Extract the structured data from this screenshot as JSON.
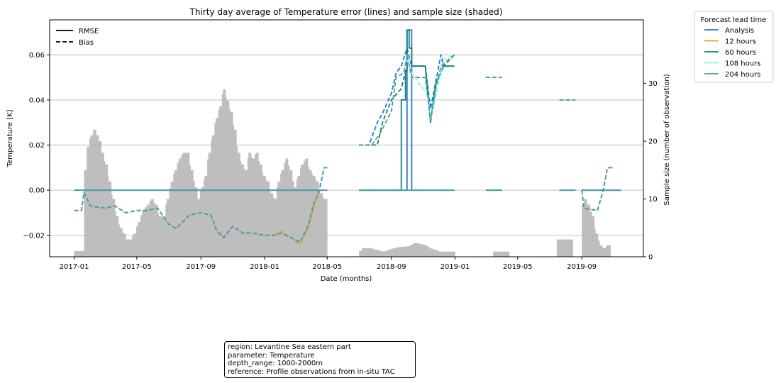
{
  "chart_data": {
    "type": "line",
    "title": "Thirty day average of Temperature error (lines) and sample size (shaded)",
    "xlabel": "Date (months)",
    "ylabel": "Temperature [K]",
    "y2label": "Sample size (number of observation)",
    "xlim": [
      "2016-11-15",
      "2019-12-28"
    ],
    "ylim": [
      -0.0295,
      0.0755
    ],
    "y2lim": [
      0,
      41
    ],
    "x_ticks": [
      "2017-01",
      "2017-05",
      "2017-09",
      "2018-01",
      "2018-05",
      "2018-09",
      "2019-01",
      "2019-05",
      "2019-09"
    ],
    "y_ticks": [
      "−0.02",
      "0.00",
      "0.02",
      "0.04",
      "0.06"
    ],
    "y_tick_values": [
      -0.02,
      0.0,
      0.02,
      0.04,
      0.06
    ],
    "y2_ticks": [
      "0",
      "10",
      "20",
      "30"
    ],
    "y2_tick_values": [
      0,
      10,
      20,
      30
    ],
    "grid": "horizontal",
    "style_legend": {
      "placement": "top-left",
      "items": [
        {
          "label": "RMSE",
          "dash": "solid"
        },
        {
          "label": "Bias",
          "dash": "dashed"
        }
      ]
    },
    "legend": {
      "title": "Forecast lead time",
      "placement": "outside-right",
      "items": [
        {
          "label": "Analysis",
          "color": "#1f77d4"
        },
        {
          "label": "12 hours",
          "color": "#daa520"
        },
        {
          "label": "60 hours",
          "color": "#117c7c"
        },
        {
          "label": "108 hours",
          "color": "#7fffd4"
        },
        {
          "label": "204 hours",
          "color": "#4a9f9f"
        }
      ]
    },
    "sample_size": [
      [
        "2017-01-01",
        1
      ],
      [
        "2017-01-15",
        1
      ],
      [
        "2017-01-20",
        15
      ],
      [
        "2017-01-25",
        19
      ],
      [
        "2017-02-01",
        21
      ],
      [
        "2017-02-07",
        22
      ],
      [
        "2017-02-12",
        21
      ],
      [
        "2017-02-17",
        20
      ],
      [
        "2017-02-22",
        18
      ],
      [
        "2017-03-01",
        16
      ],
      [
        "2017-03-08",
        13
      ],
      [
        "2017-03-15",
        10
      ],
      [
        "2017-03-22",
        7
      ],
      [
        "2017-03-29",
        5
      ],
      [
        "2017-04-05",
        4
      ],
      [
        "2017-04-10",
        3
      ],
      [
        "2017-04-17",
        3
      ],
      [
        "2017-04-25",
        4
      ],
      [
        "2017-05-03",
        6
      ],
      [
        "2017-05-11",
        8
      ],
      [
        "2017-05-20",
        9
      ],
      [
        "2017-05-28",
        10
      ],
      [
        "2017-06-05",
        9
      ],
      [
        "2017-06-12",
        7
      ],
      [
        "2017-06-20",
        7
      ],
      [
        "2017-06-27",
        10
      ],
      [
        "2017-07-05",
        13
      ],
      [
        "2017-07-12",
        15
      ],
      [
        "2017-07-20",
        17
      ],
      [
        "2017-07-28",
        18
      ],
      [
        "2017-08-05",
        18
      ],
      [
        "2017-08-12",
        15
      ],
      [
        "2017-08-20",
        12
      ],
      [
        "2017-08-25",
        10
      ],
      [
        "2017-09-01",
        12
      ],
      [
        "2017-09-08",
        14
      ],
      [
        "2017-09-15",
        18
      ],
      [
        "2017-09-22",
        21
      ],
      [
        "2017-09-29",
        24
      ],
      [
        "2017-10-06",
        26
      ],
      [
        "2017-10-13",
        29
      ],
      [
        "2017-10-20",
        27
      ],
      [
        "2017-10-27",
        25
      ],
      [
        "2017-11-03",
        22
      ],
      [
        "2017-11-10",
        18
      ],
      [
        "2017-11-17",
        16
      ],
      [
        "2017-11-24",
        15
      ],
      [
        "2017-12-01",
        18
      ],
      [
        "2017-12-08",
        17
      ],
      [
        "2017-12-15",
        18
      ],
      [
        "2017-12-22",
        16
      ],
      [
        "2017-12-29",
        14
      ],
      [
        "2018-01-05",
        13
      ],
      [
        "2018-01-12",
        11
      ],
      [
        "2018-01-19",
        10
      ],
      [
        "2018-01-26",
        13
      ],
      [
        "2018-02-02",
        15
      ],
      [
        "2018-02-10",
        17
      ],
      [
        "2018-02-18",
        15
      ],
      [
        "2018-02-26",
        12
      ],
      [
        "2018-03-05",
        14
      ],
      [
        "2018-03-12",
        16
      ],
      [
        "2018-03-20",
        17
      ],
      [
        "2018-03-27",
        15
      ],
      [
        "2018-04-03",
        14
      ],
      [
        "2018-04-10",
        13
      ],
      [
        "2018-04-17",
        11
      ],
      [
        "2018-04-24",
        10
      ],
      [
        "2018-05-01",
        0
      ],
      [
        "2018-07-01",
        1
      ],
      [
        "2018-07-07",
        1.5
      ],
      [
        "2018-07-20",
        1.5
      ],
      [
        "2018-08-01",
        1.2
      ],
      [
        "2018-08-15",
        0.9
      ],
      [
        "2018-09-01",
        1.4
      ],
      [
        "2018-09-15",
        1.7
      ],
      [
        "2018-10-01",
        1.8
      ],
      [
        "2018-10-15",
        2.4
      ],
      [
        "2018-11-01",
        2.1
      ],
      [
        "2018-11-15",
        1.4
      ],
      [
        "2018-12-01",
        0.9
      ],
      [
        "2018-12-15",
        0.9
      ],
      [
        "2019-01-01",
        0
      ],
      [
        "2019-03-15",
        0.9
      ],
      [
        "2019-04-15",
        0
      ],
      [
        "2019-07-15",
        3
      ],
      [
        "2019-08-15",
        0
      ],
      [
        "2019-09-01",
        9
      ],
      [
        "2019-09-05",
        10
      ],
      [
        "2019-09-12",
        9
      ],
      [
        "2019-09-20",
        7
      ],
      [
        "2019-09-27",
        4
      ],
      [
        "2019-10-05",
        2
      ],
      [
        "2019-10-12",
        1.5
      ],
      [
        "2019-10-19",
        2
      ],
      [
        "2019-10-26",
        0
      ]
    ],
    "series": [
      {
        "name": "Analysis",
        "metric": "RMSE",
        "points": [
          [
            "2017-01-01",
            0.0
          ],
          [
            "2018-05-01",
            0.0
          ],
          null,
          [
            "2018-07-01",
            0.0
          ],
          [
            "2018-10-01",
            0.0
          ],
          [
            "2018-10-01",
            0.071
          ],
          [
            "2018-10-10",
            0.071
          ],
          [
            "2018-10-10",
            0.0
          ],
          [
            "2018-12-31",
            0.0
          ],
          null,
          [
            "2019-03-01",
            0.0
          ],
          [
            "2019-04-01",
            0.0
          ],
          null,
          [
            "2019-07-20",
            0.0
          ],
          [
            "2019-08-20",
            0.0
          ],
          null,
          [
            "2019-09-01",
            0.0
          ],
          [
            "2019-11-15",
            0.0
          ]
        ]
      },
      {
        "name": "Analysis",
        "metric": "Bias",
        "points": [
          [
            "2017-01-01",
            -0.009
          ],
          [
            "2017-01-15",
            -0.009
          ],
          [
            "2017-01-20",
            -0.001
          ],
          [
            "2017-02-01",
            -0.007
          ],
          [
            "2017-03-01",
            -0.008
          ],
          [
            "2017-03-20",
            -0.007
          ],
          [
            "2017-04-10",
            -0.01
          ],
          [
            "2017-05-01",
            -0.009
          ],
          [
            "2017-05-20",
            -0.009
          ],
          [
            "2017-06-10",
            -0.008
          ],
          [
            "2017-07-01",
            -0.015
          ],
          [
            "2017-07-15",
            -0.017
          ],
          [
            "2017-08-10",
            -0.011
          ],
          [
            "2017-09-01",
            -0.01
          ],
          [
            "2017-09-20",
            -0.011
          ],
          [
            "2017-10-01",
            -0.018
          ],
          [
            "2017-10-15",
            -0.021
          ],
          [
            "2017-11-01",
            -0.016
          ],
          [
            "2017-11-20",
            -0.019
          ],
          [
            "2017-12-10",
            -0.019
          ],
          [
            "2018-01-01",
            -0.02
          ],
          [
            "2018-01-20",
            -0.02
          ],
          [
            "2018-02-01",
            -0.019
          ],
          [
            "2018-02-20",
            -0.021
          ],
          [
            "2018-03-10",
            -0.023
          ],
          [
            "2018-03-25",
            -0.016
          ],
          [
            "2018-04-05",
            -0.006
          ],
          [
            "2018-04-15",
            -0.001
          ],
          [
            "2018-04-25",
            0.01
          ],
          [
            "2018-05-01",
            0.01
          ],
          null,
          [
            "2018-07-01",
            0.02
          ],
          [
            "2018-07-20",
            0.02
          ],
          [
            "2018-08-05",
            0.03
          ],
          [
            "2018-08-15",
            0.034
          ],
          [
            "2018-09-01",
            0.043
          ],
          [
            "2018-09-10",
            0.052
          ],
          [
            "2018-09-20",
            0.055
          ],
          [
            "2018-10-01",
            0.063
          ],
          [
            "2018-10-10",
            0.055
          ],
          [
            "2018-11-05",
            0.055
          ],
          [
            "2018-11-15",
            0.036
          ],
          [
            "2018-11-25",
            0.048
          ],
          [
            "2018-12-05",
            0.06
          ],
          [
            "2018-12-10",
            0.055
          ],
          [
            "2018-12-31",
            0.06
          ],
          null,
          [
            "2019-03-01",
            0.05
          ],
          [
            "2019-04-01",
            0.05
          ],
          null,
          [
            "2019-07-20",
            0.04
          ],
          [
            "2019-08-20",
            0.04
          ],
          null,
          [
            "2019-09-01",
            0.0
          ],
          [
            "2019-09-05",
            -0.008
          ],
          [
            "2019-10-01",
            -0.009
          ],
          [
            "2019-10-12",
            0.0
          ],
          [
            "2019-10-20",
            0.01
          ],
          [
            "2019-10-31",
            0.01
          ]
        ]
      },
      {
        "name": "12 hours",
        "metric": "Bias",
        "points": [
          [
            "2018-01-20",
            -0.02
          ],
          [
            "2018-02-01",
            -0.018
          ],
          [
            "2018-02-20",
            -0.021
          ],
          [
            "2018-03-10",
            -0.024
          ],
          [
            "2018-03-25",
            -0.017
          ],
          [
            "2018-04-15",
            0.0
          ]
        ]
      },
      {
        "name": "60 hours",
        "metric": "RMSE",
        "points": [
          [
            "2018-07-01",
            0.0
          ],
          [
            "2018-09-20",
            0.0
          ],
          [
            "2018-09-20",
            0.04
          ],
          [
            "2018-09-28",
            0.04
          ],
          [
            "2018-09-28",
            0.053
          ],
          [
            "2018-10-01",
            0.053
          ],
          [
            "2018-10-01",
            0.071
          ],
          [
            "2018-10-05",
            0.071
          ],
          [
            "2018-10-05",
            0.063
          ],
          [
            "2018-10-10",
            0.063
          ],
          [
            "2018-10-10",
            0.055
          ],
          [
            "2018-11-05",
            0.055
          ],
          [
            "2018-11-15",
            0.03
          ],
          [
            "2018-11-25",
            0.047
          ],
          [
            "2018-12-10",
            0.055
          ],
          [
            "2018-12-31",
            0.055
          ]
        ]
      },
      {
        "name": "60 hours",
        "metric": "Bias",
        "points": [
          [
            "2018-07-01",
            0.02
          ],
          [
            "2018-08-05",
            0.02
          ],
          [
            "2018-08-15",
            0.03
          ],
          [
            "2018-09-01",
            0.04
          ],
          [
            "2018-09-20",
            0.045
          ],
          [
            "2018-10-01",
            0.055
          ]
        ]
      },
      {
        "name": "108 hours",
        "metric": "Bias",
        "points": [
          [
            "2018-10-01",
            0.058
          ],
          [
            "2018-10-10",
            0.052
          ],
          [
            "2018-11-10",
            0.042
          ],
          [
            "2018-11-15",
            0.031
          ],
          [
            "2018-12-01",
            0.048
          ],
          [
            "2018-12-10",
            0.058
          ],
          [
            "2018-12-31",
            0.06
          ]
        ]
      },
      {
        "name": "204 hours",
        "metric": "RMSE",
        "points": [
          [
            "2017-01-01",
            0.0
          ],
          [
            "2018-05-01",
            0.0
          ],
          null,
          [
            "2018-07-01",
            0.0
          ],
          [
            "2018-12-31",
            0.0
          ],
          null,
          [
            "2019-03-01",
            0.0
          ],
          [
            "2019-04-01",
            0.0
          ],
          null,
          [
            "2019-07-20",
            0.0
          ],
          [
            "2019-08-20",
            0.0
          ],
          null,
          [
            "2019-09-01",
            0.0
          ],
          [
            "2019-11-15",
            0.0
          ]
        ]
      },
      {
        "name": "204 hours",
        "metric": "Bias",
        "points": [
          [
            "2017-01-01",
            -0.009
          ],
          [
            "2017-01-15",
            -0.009
          ],
          [
            "2017-01-20",
            -0.001
          ],
          [
            "2017-02-01",
            -0.007
          ],
          [
            "2017-03-01",
            -0.008
          ],
          [
            "2017-03-20",
            -0.007
          ],
          [
            "2017-04-10",
            -0.01
          ],
          [
            "2017-05-01",
            -0.009
          ],
          [
            "2017-05-20",
            -0.009
          ],
          [
            "2017-06-10",
            -0.008
          ],
          [
            "2017-07-01",
            -0.015
          ],
          [
            "2017-07-15",
            -0.017
          ],
          [
            "2017-08-10",
            -0.011
          ],
          [
            "2017-09-01",
            -0.01
          ],
          [
            "2017-09-20",
            -0.011
          ],
          [
            "2017-10-01",
            -0.018
          ],
          [
            "2017-10-15",
            -0.021
          ],
          [
            "2017-11-01",
            -0.016
          ],
          [
            "2017-11-20",
            -0.019
          ],
          [
            "2017-12-10",
            -0.019
          ],
          [
            "2018-01-01",
            -0.02
          ],
          [
            "2018-01-20",
            -0.02
          ],
          [
            "2018-02-01",
            -0.019
          ],
          [
            "2018-02-20",
            -0.021
          ],
          [
            "2018-03-10",
            -0.023
          ],
          [
            "2018-03-25",
            -0.016
          ],
          [
            "2018-04-05",
            -0.006
          ],
          [
            "2018-04-15",
            -0.001
          ],
          [
            "2018-04-25",
            0.01
          ],
          [
            "2018-05-01",
            0.01
          ],
          null,
          [
            "2018-07-01",
            0.02
          ],
          [
            "2018-07-25",
            0.02
          ],
          [
            "2018-08-10",
            0.025
          ],
          [
            "2018-09-01",
            0.035
          ],
          [
            "2018-09-10",
            0.05
          ],
          [
            "2018-09-25",
            0.052
          ],
          [
            "2018-10-01",
            0.06
          ],
          [
            "2018-10-10",
            0.05
          ],
          [
            "2018-11-05",
            0.05
          ],
          [
            "2018-11-15",
            0.031
          ],
          [
            "2018-11-25",
            0.045
          ],
          [
            "2018-12-05",
            0.055
          ],
          [
            "2018-12-31",
            0.06
          ],
          null,
          [
            "2019-03-01",
            0.05
          ],
          [
            "2019-04-01",
            0.05
          ],
          null,
          [
            "2019-07-20",
            0.04
          ],
          [
            "2019-08-20",
            0.04
          ],
          null,
          [
            "2019-09-01",
            0.0
          ],
          [
            "2019-09-05",
            -0.008
          ],
          [
            "2019-10-01",
            -0.009
          ],
          [
            "2019-10-12",
            0.0
          ],
          [
            "2019-10-20",
            0.01
          ],
          [
            "2019-10-31",
            0.01
          ]
        ]
      }
    ]
  },
  "info_box": {
    "region": "region: Levantine Sea eastern part",
    "parameter": "parameter: Temperature",
    "depth_range": "depth_range: 1000-2000m",
    "reference": "reference: Profile observations from in-situ TAC"
  },
  "colors": {
    "grid": "#b0b0b0",
    "sample_bar": "#bebebe"
  }
}
